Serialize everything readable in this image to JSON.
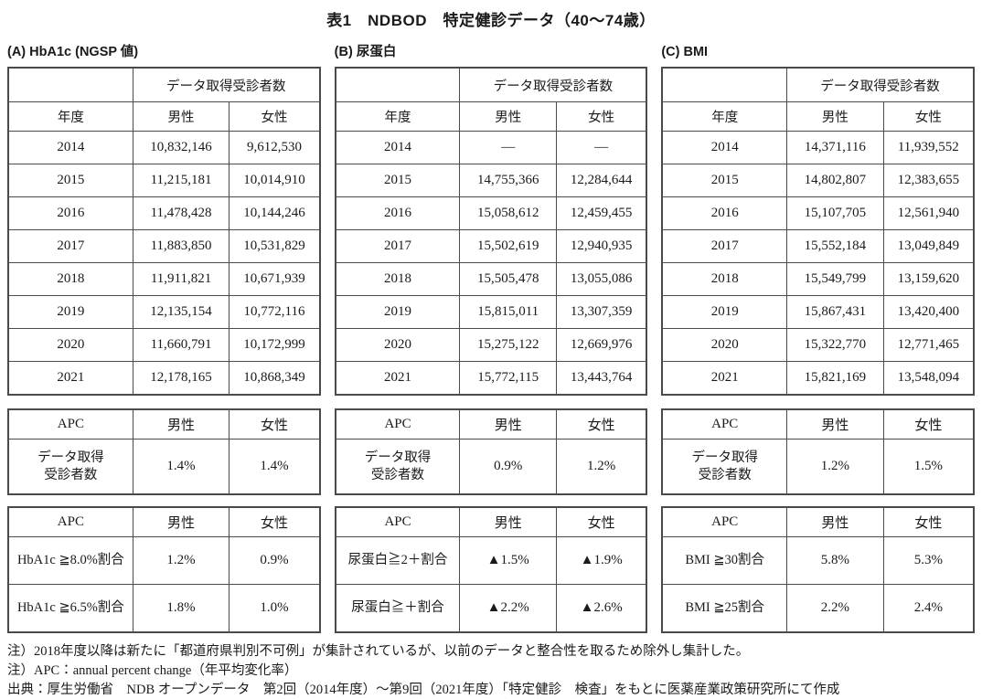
{
  "page": {
    "title": "表1　NDBOD　特定健診データ（40～74歳）",
    "background_color": "#ffffff",
    "text_color": "#1a1a1a",
    "border_color": "#4a4a4a"
  },
  "sections": [
    {
      "id": "a",
      "label": "(A) HbA1c (NGSP 値)",
      "main_table": {
        "group_header": "データ取得受診者数",
        "columns": [
          "年度",
          "男性",
          "女性"
        ],
        "rows": [
          [
            "2014",
            "10,832,146",
            "9,612,530"
          ],
          [
            "2015",
            "11,215,181",
            "10,014,910"
          ],
          [
            "2016",
            "11,478,428",
            "10,144,246"
          ],
          [
            "2017",
            "11,883,850",
            "10,531,829"
          ],
          [
            "2018",
            "11,911,821",
            "10,671,939"
          ],
          [
            "2019",
            "12,135,154",
            "10,772,116"
          ],
          [
            "2020",
            "11,660,791",
            "10,172,999"
          ],
          [
            "2021",
            "12,178,165",
            "10,868,349"
          ]
        ]
      },
      "apc_table_1": {
        "columns": [
          "APC",
          "男性",
          "女性"
        ],
        "rows": [
          [
            "データ取得\n受診者数",
            "1.4%",
            "1.4%"
          ]
        ]
      },
      "apc_table_2": {
        "columns": [
          "APC",
          "男性",
          "女性"
        ],
        "rows": [
          [
            "HbA1c ≧8.0%割合",
            "1.2%",
            "0.9%"
          ],
          [
            "HbA1c ≧6.5%割合",
            "1.8%",
            "1.0%"
          ]
        ]
      }
    },
    {
      "id": "b",
      "label": "(B) 尿蛋白",
      "main_table": {
        "group_header": "データ取得受診者数",
        "columns": [
          "年度",
          "男性",
          "女性"
        ],
        "rows": [
          [
            "2014",
            "—",
            "—"
          ],
          [
            "2015",
            "14,755,366",
            "12,284,644"
          ],
          [
            "2016",
            "15,058,612",
            "12,459,455"
          ],
          [
            "2017",
            "15,502,619",
            "12,940,935"
          ],
          [
            "2018",
            "15,505,478",
            "13,055,086"
          ],
          [
            "2019",
            "15,815,011",
            "13,307,359"
          ],
          [
            "2020",
            "15,275,122",
            "12,669,976"
          ],
          [
            "2021",
            "15,772,115",
            "13,443,764"
          ]
        ]
      },
      "apc_table_1": {
        "columns": [
          "APC",
          "男性",
          "女性"
        ],
        "rows": [
          [
            "データ取得\n受診者数",
            "0.9%",
            "1.2%"
          ]
        ]
      },
      "apc_table_2": {
        "columns": [
          "APC",
          "男性",
          "女性"
        ],
        "rows": [
          [
            "尿蛋白≧2＋割合",
            "▲1.5%",
            "▲1.9%"
          ],
          [
            "尿蛋白≧＋割合",
            "▲2.2%",
            "▲2.6%"
          ]
        ]
      }
    },
    {
      "id": "c",
      "label": "(C) BMI",
      "main_table": {
        "group_header": "データ取得受診者数",
        "columns": [
          "年度",
          "男性",
          "女性"
        ],
        "rows": [
          [
            "2014",
            "14,371,116",
            "11,939,552"
          ],
          [
            "2015",
            "14,802,807",
            "12,383,655"
          ],
          [
            "2016",
            "15,107,705",
            "12,561,940"
          ],
          [
            "2017",
            "15,552,184",
            "13,049,849"
          ],
          [
            "2018",
            "15,549,799",
            "13,159,620"
          ],
          [
            "2019",
            "15,867,431",
            "13,420,400"
          ],
          [
            "2020",
            "15,322,770",
            "12,771,465"
          ],
          [
            "2021",
            "15,821,169",
            "13,548,094"
          ]
        ]
      },
      "apc_table_1": {
        "columns": [
          "APC",
          "男性",
          "女性"
        ],
        "rows": [
          [
            "データ取得\n受診者数",
            "1.2%",
            "1.5%"
          ]
        ]
      },
      "apc_table_2": {
        "columns": [
          "APC",
          "男性",
          "女性"
        ],
        "rows": [
          [
            "BMI ≧30割合",
            "5.8%",
            "5.3%"
          ],
          [
            "BMI ≧25割合",
            "2.2%",
            "2.4%"
          ]
        ]
      }
    }
  ],
  "footnotes": [
    "注）2018年度以降は新たに「都道府県判別不可例」が集計されているが、以前のデータと整合性を取るため除外し集計した。",
    "注）APC：annual percent change（年平均変化率）",
    "出典：厚生労働省　NDB オープンデータ　第2回（2014年度）～第9回（2021年度）「特定健診　検査」をもとに医薬産業政策研究所にて作成"
  ]
}
